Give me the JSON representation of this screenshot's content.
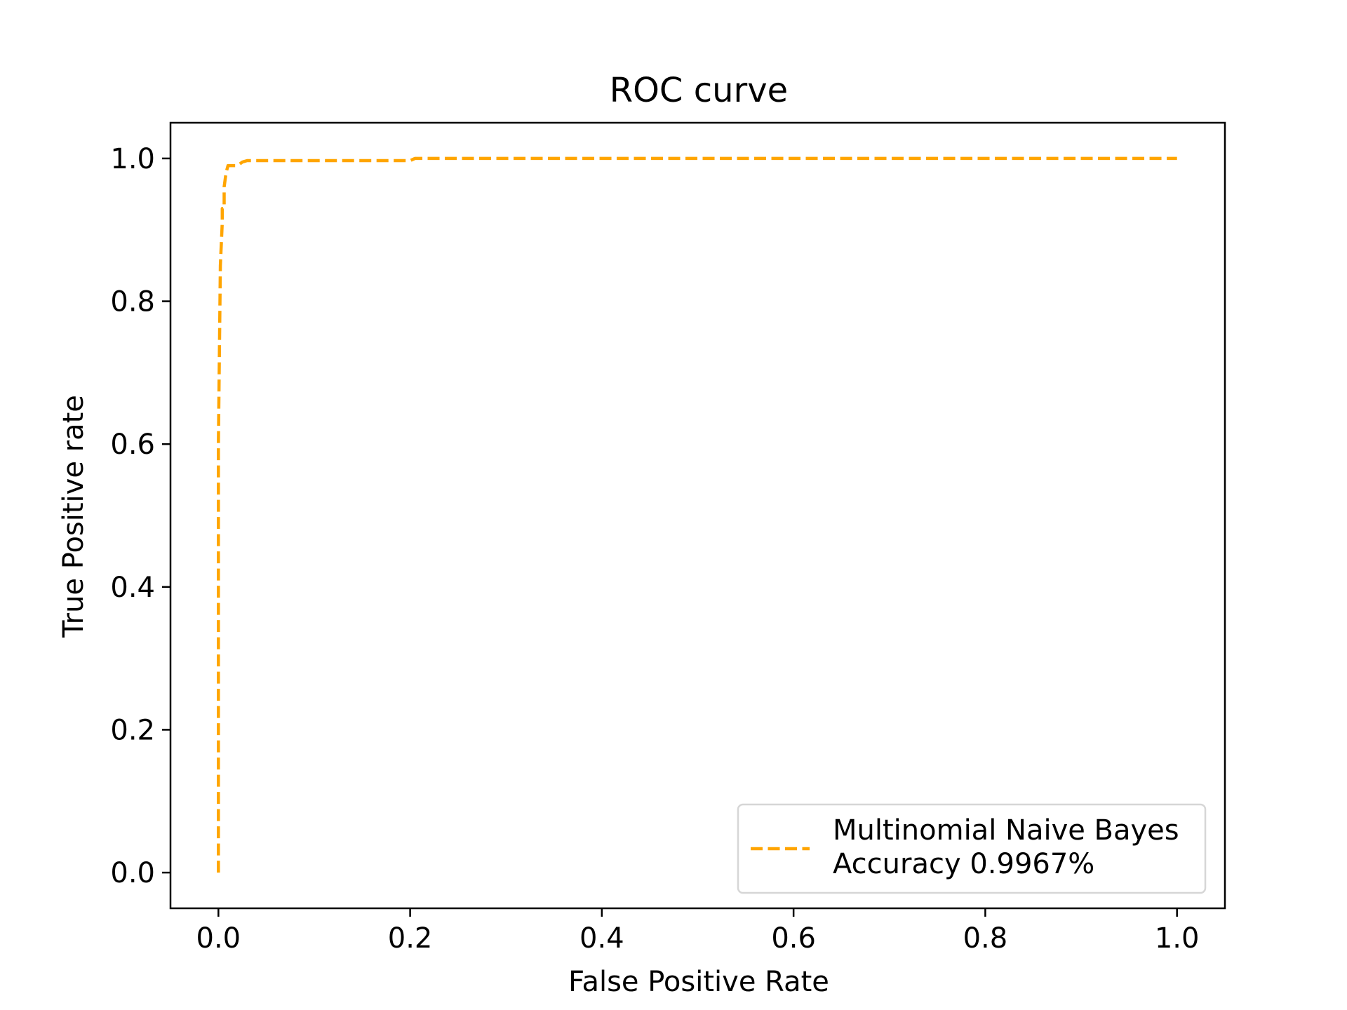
{
  "chart_data": {
    "type": "line",
    "title": "ROC curve",
    "xlabel": "False Positive Rate",
    "ylabel": "True Positive rate",
    "xlim": [
      -0.05,
      1.05
    ],
    "ylim": [
      -0.05,
      1.05
    ],
    "xticks": [
      "0.0",
      "0.2",
      "0.4",
      "0.6",
      "0.8",
      "1.0"
    ],
    "yticks": [
      "0.0",
      "0.2",
      "0.4",
      "0.6",
      "0.8",
      "1.0"
    ],
    "grid": false,
    "legend_position": "lower-right",
    "series": [
      {
        "name": "Multinomial Naive Bayes\nAccuracy 0.9967%",
        "legend_lines": [
          "Multinomial Naive Bayes",
          "Accuracy 0.9967%"
        ],
        "color": "#FFA500",
        "line_style": "dashed",
        "x": [
          0.0,
          0.0,
          0.002,
          0.004,
          0.004,
          0.006,
          0.006,
          0.008,
          0.01,
          0.012,
          0.02,
          0.025,
          0.03,
          0.2,
          0.205,
          0.21,
          0.4,
          0.6,
          0.8,
          1.0
        ],
        "y": [
          0.0,
          0.6,
          0.85,
          0.91,
          0.93,
          0.93,
          0.96,
          0.98,
          0.99,
          0.99,
          0.99,
          0.995,
          0.997,
          0.997,
          1.0,
          1.0,
          1.0,
          1.0,
          1.0,
          1.0
        ]
      }
    ]
  }
}
